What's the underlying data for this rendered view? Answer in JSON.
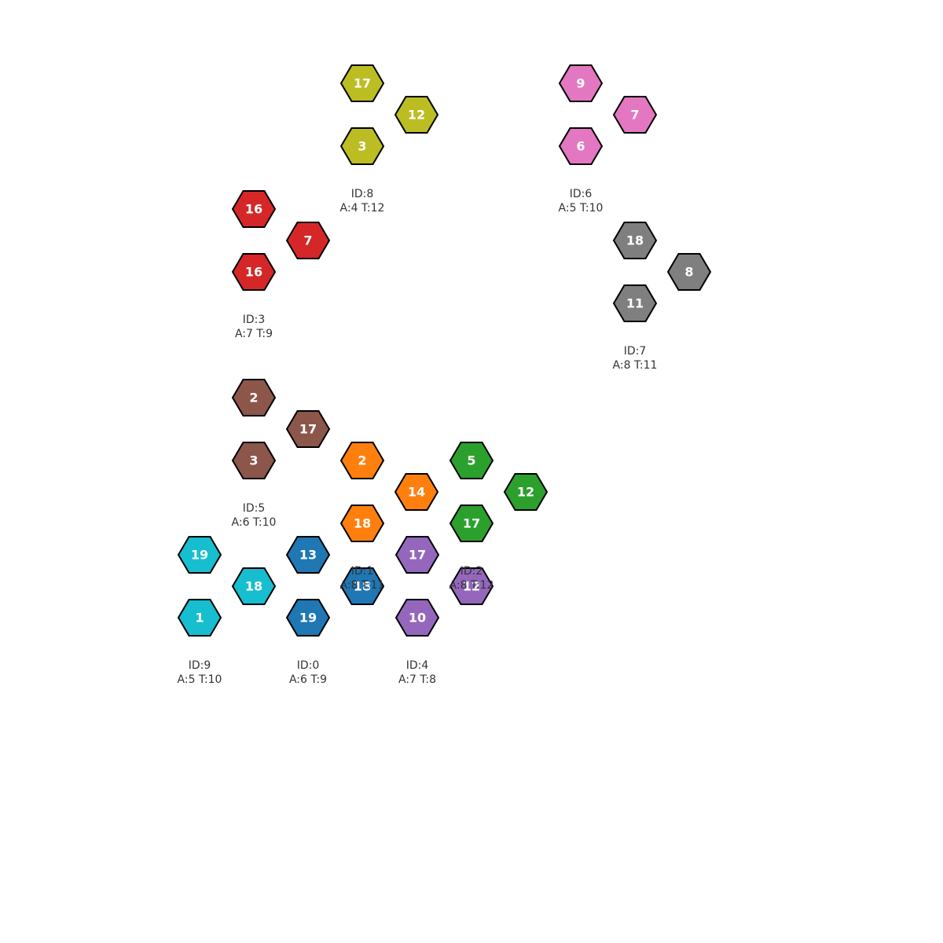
{
  "board": {
    "groups": [
      {
        "id_label": "ID:8",
        "stats_label": "A:4 T:12",
        "color": "#bcbd22",
        "tiles": [
          "17",
          "12",
          "3"
        ]
      },
      {
        "id_label": "ID:6",
        "stats_label": "A:5 T:10",
        "color": "#e377c2",
        "tiles": [
          "9",
          "7",
          "6"
        ]
      },
      {
        "id_label": "ID:3",
        "stats_label": "A:7 T:9",
        "color": "#d62728",
        "tiles": [
          "16",
          "7",
          "16"
        ]
      },
      {
        "id_label": "ID:7",
        "stats_label": "A:8 T:11",
        "color": "#7f7f7f",
        "tiles": [
          "18",
          "8",
          "11"
        ]
      },
      {
        "id_label": "ID:5",
        "stats_label": "A:6 T:10",
        "color": "#8c564b",
        "tiles": [
          "2",
          "17",
          "3"
        ]
      },
      {
        "id_label": "ID:1",
        "stats_label": "A:8 T:11",
        "color": "#ff7f0e",
        "tiles": [
          "2",
          "14",
          "18"
        ]
      },
      {
        "id_label": "ID:2",
        "stats_label": "A:8 T:12",
        "color": "#2ca02c",
        "tiles": [
          "5",
          "12",
          "17"
        ]
      },
      {
        "id_label": "ID:9",
        "stats_label": "A:5 T:10",
        "color": "#17becf",
        "tiles": [
          "19",
          "18",
          "1"
        ]
      },
      {
        "id_label": "ID:0",
        "stats_label": "A:6 T:9",
        "color": "#1f77b4",
        "tiles": [
          "13",
          "18",
          "19"
        ]
      },
      {
        "id_label": "ID:4",
        "stats_label": "A:7 T:8",
        "color": "#9467bd",
        "tiles": [
          "17",
          "12",
          "10"
        ]
      }
    ]
  }
}
